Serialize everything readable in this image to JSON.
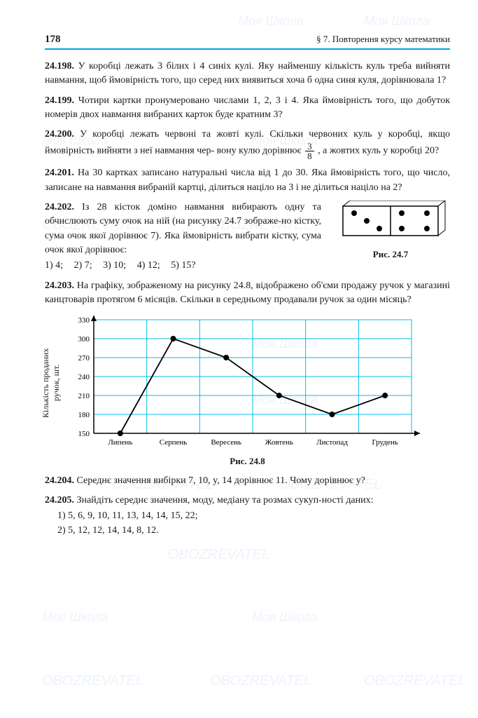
{
  "header": {
    "page_number": "178",
    "section": "§ 7.  Повторення курсу математики"
  },
  "problems": {
    "p198": {
      "num": "24.198.",
      "text": "У коробці лежать 3 білих і 4 синіх кулі. Яку найменшу кількість куль треба вийняти навмання, щоб ймовірність того, що серед них виявиться хоча б одна синя куля, дорівнювала 1?"
    },
    "p199": {
      "num": "24.199.",
      "text": "Чотири картки пронумеровано числами 1, 2, 3 і 4. Яка ймовірність того, що добуток номерів двох навмання вибраних карток буде кратним 3?"
    },
    "p200": {
      "num": "24.200.",
      "text_a": "У коробці лежать червоні та жовті кулі. Скільки червоних куль у коробці, якщо ймовірність вийняти з неї навмання чер-",
      "text_b": "вону кулю дорівнює",
      "text_c": ", а жовтих куль у коробці 20?",
      "frac_n": "3",
      "frac_d": "8"
    },
    "p201": {
      "num": "24.201.",
      "text": "На 30 картках записано натуральні числа від 1 до 30. Яка ймовірність того, що число, записане на навмання вибраній картці, ділиться націло на 3 і не ділиться націло на 2?"
    },
    "p202": {
      "num": "24.202.",
      "text": "Із 28 кісток доміно навмання вибирають одну та обчислюють суму очок на ній (на рисунку 24.7 зображе-но кістку, сума очок якої дорівнює 7). Яка ймовірність вибрати кістку, сума очок якої дорівнює:",
      "opts": {
        "o1": "1) 4;",
        "o2": "2) 7;",
        "o3": "3) 10;",
        "o4": "4) 12;",
        "o5": "5) 15?"
      },
      "fig_label": "Рис. 24.7"
    },
    "p203": {
      "num": "24.203.",
      "text": "На графіку, зображеному на рисунку 24.8, відображено об'єми продажу ручок у магазині канцтоварів протягом 6 місяців. Скільки в середньому продавали ручок за один місяць?"
    },
    "chart": {
      "y_label": "Кількість проданих\nручок, шт.",
      "y_ticks": [
        "150",
        "180",
        "210",
        "240",
        "270",
        "300",
        "330"
      ],
      "y_values": [
        150,
        180,
        210,
        240,
        270,
        300,
        330
      ],
      "x_labels": [
        "Липень",
        "Серпень",
        "Вересень",
        "Жовтень",
        "Листопад",
        "Грудень"
      ],
      "data": [
        150,
        300,
        270,
        210,
        180,
        210
      ],
      "grid_color": "#00bfe6",
      "axis_color": "#000000",
      "point_color": "#000000",
      "line_color": "#000000",
      "bg": "#ffffff",
      "caption": "Рис. 24.8"
    },
    "p204": {
      "num": "24.204.",
      "text": "Середнє значення вибірки 7, 10, y, 14 дорівнює 11. Чому дорівнює y?"
    },
    "p205": {
      "num": "24.205.",
      "text": "Знайдіть середнє значення, моду, медіану та розмах сукуп-ності даних:",
      "line1": "1) 5, 6, 9, 10, 11, 13, 14, 14, 15, 22;",
      "line2": "2) 5, 12, 12, 14, 14, 8, 12."
    }
  },
  "watermarks": {
    "a": "Моя Школа",
    "b": "OBOZREVATEL"
  }
}
